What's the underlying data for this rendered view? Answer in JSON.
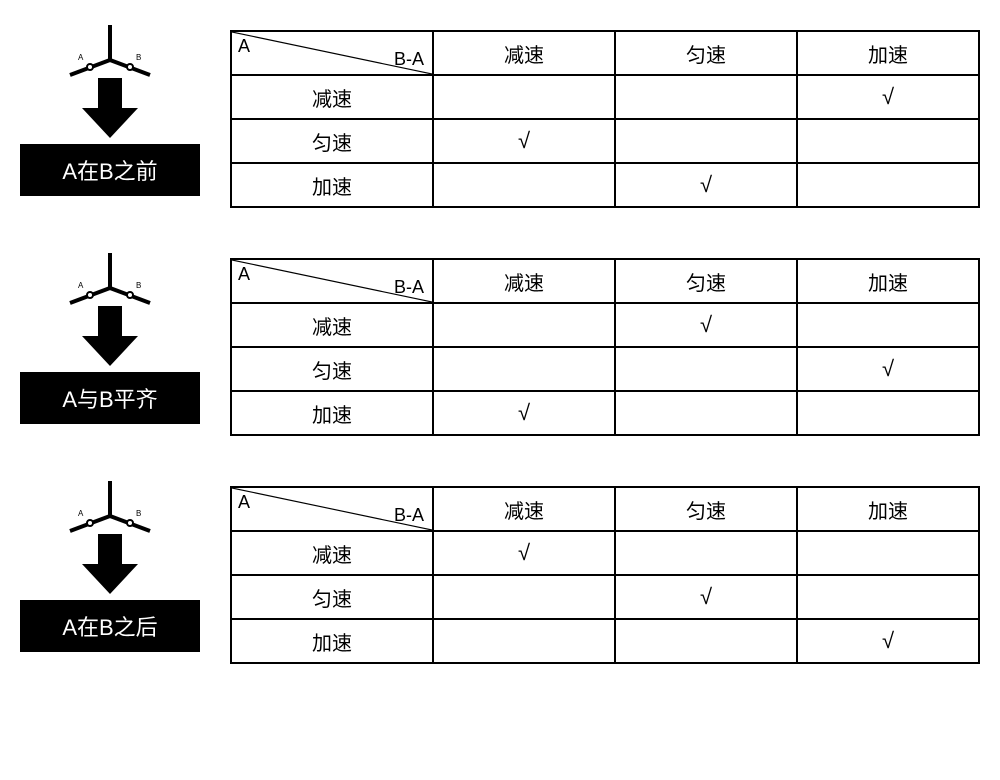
{
  "header": {
    "rowLabel": "A",
    "colLabel": "B-A"
  },
  "columns": [
    "减速",
    "匀速",
    "加速"
  ],
  "rows": [
    "减速",
    "匀速",
    "加速"
  ],
  "checkMark": "√",
  "sections": [
    {
      "label": "A在B之前",
      "iconALabel": "A",
      "iconBLabel": "B",
      "marks": [
        [
          false,
          false,
          true
        ],
        [
          true,
          false,
          false
        ],
        [
          false,
          true,
          false
        ]
      ]
    },
    {
      "label": "A与B平齐",
      "iconALabel": "A",
      "iconBLabel": "B",
      "marks": [
        [
          false,
          true,
          false
        ],
        [
          false,
          false,
          true
        ],
        [
          true,
          false,
          false
        ]
      ]
    },
    {
      "label": "A在B之后",
      "iconALabel": "A",
      "iconBLabel": "B",
      "marks": [
        [
          true,
          false,
          false
        ],
        [
          false,
          true,
          false
        ],
        [
          false,
          false,
          true
        ]
      ]
    }
  ],
  "style": {
    "arrowColor": "#000000",
    "labelBg": "#000000",
    "labelColor": "#ffffff",
    "tableBorder": "#000000",
    "fontFamily": "Microsoft YaHei, Arial, sans-serif",
    "labelFontSize": 22,
    "cellFontSize": 20
  }
}
